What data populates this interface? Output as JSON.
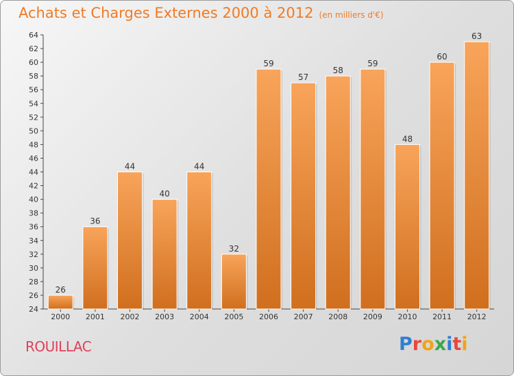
{
  "header": {
    "title": "Achats et Charges Externes 2000 à 2012",
    "unit": "(en milliers d'€)"
  },
  "footer": {
    "place": "ROUILLAC",
    "logo_letters": [
      "P",
      "r",
      "o",
      "x",
      "i",
      "t",
      "i"
    ],
    "logo_text": "Proxiti"
  },
  "colors": {
    "bar_top": "#f8a45a",
    "bar_bottom": "#d06f1e",
    "title": "#f07a24",
    "place": "#e0405a",
    "logo": [
      "#2f7fd1",
      "#e8473b",
      "#f2a21a",
      "#3aa84a",
      "#2f7fd1",
      "#e8473b",
      "#f2a21a"
    ]
  },
  "chart_data": {
    "type": "bar",
    "title": "Achats et Charges Externes 2000 à 2012",
    "subtitle": "(en milliers d'€)",
    "categories": [
      "2000",
      "2001",
      "2002",
      "2003",
      "2004",
      "2005",
      "2006",
      "2007",
      "2008",
      "2009",
      "2010",
      "2011",
      "2012"
    ],
    "values": [
      26,
      36,
      44,
      40,
      44,
      32,
      59,
      57,
      58,
      59,
      48,
      60,
      63
    ],
    "ylim": [
      24,
      64
    ],
    "yticks": [
      24,
      26,
      28,
      30,
      32,
      34,
      36,
      38,
      40,
      42,
      44,
      46,
      48,
      50,
      52,
      54,
      56,
      58,
      60,
      62,
      64
    ],
    "grid": false,
    "data_labels": true
  }
}
